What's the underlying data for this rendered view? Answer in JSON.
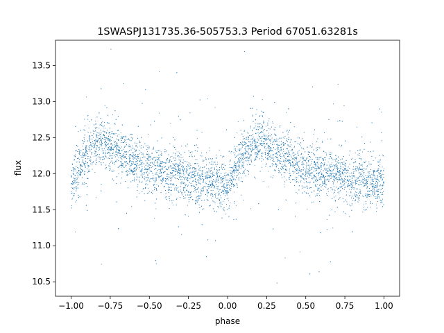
{
  "chart_data": {
    "type": "scatter",
    "title": "1SWASPJ131735.36-505753.3 Period 67051.63281s",
    "xlabel": "phase",
    "ylabel": "flux",
    "xlim": [
      -1.1,
      1.1
    ],
    "ylim": [
      10.3,
      13.85
    ],
    "xticks": [
      -1.0,
      -0.75,
      -0.5,
      -0.25,
      0.0,
      0.25,
      0.5,
      0.75,
      1.0
    ],
    "xtick_labels": [
      "−1.00",
      "−0.75",
      "−0.50",
      "−0.25",
      "0.00",
      "0.25",
      "0.50",
      "0.75",
      "1.00"
    ],
    "yticks": [
      10.5,
      11.0,
      11.5,
      12.0,
      12.5,
      13.0,
      13.5
    ],
    "ytick_labels": [
      "10.5",
      "11.0",
      "11.5",
      "12.0",
      "12.5",
      "13.0",
      "13.5"
    ],
    "grid": false,
    "point_color": "#1f77b4",
    "series": [
      {
        "x": [
          -1.0,
          -0.95,
          -0.9,
          -0.85,
          -0.8,
          -0.75,
          -0.7,
          -0.65,
          -0.6,
          -0.55,
          -0.5,
          -0.45,
          -0.4,
          -0.35,
          -0.3,
          -0.25,
          -0.2,
          -0.15,
          -0.1,
          -0.05,
          0.0,
          0.05,
          0.1,
          0.15,
          0.2,
          0.25,
          0.3,
          0.35,
          0.4,
          0.45,
          0.5,
          0.55,
          0.6,
          0.65,
          0.7,
          0.75,
          0.8,
          0.85,
          0.9,
          0.95,
          1.0
        ],
        "y": [
          11.85,
          12.05,
          12.25,
          12.38,
          12.45,
          12.4,
          12.32,
          12.25,
          12.18,
          12.12,
          12.08,
          12.05,
          12.02,
          12.0,
          11.97,
          11.95,
          11.92,
          11.9,
          11.88,
          11.86,
          11.85,
          12.05,
          12.25,
          12.38,
          12.45,
          12.4,
          12.32,
          12.25,
          12.18,
          12.12,
          12.08,
          12.05,
          12.02,
          12.0,
          11.97,
          11.95,
          11.92,
          11.9,
          11.88,
          11.86,
          11.85
        ]
      }
    ]
  }
}
